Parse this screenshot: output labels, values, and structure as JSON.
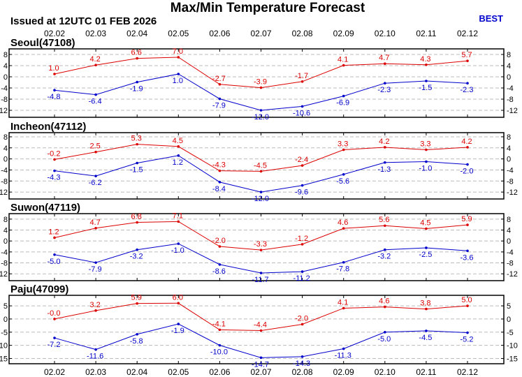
{
  "title": "Max/Min Temperature Forecast",
  "issued": "Issued at 12UTC 01 FEB 2026",
  "badge": "BEST",
  "colors": {
    "max": "#dd0000",
    "min": "#0000cc",
    "grid": "#bbbbbb"
  },
  "chart_data": [
    {
      "type": "line",
      "station": "Seoul(47108)",
      "categories": [
        "02.02",
        "02.03",
        "02.04",
        "02.05",
        "02.06",
        "02.07",
        "02.08",
        "02.09",
        "02.10",
        "02.11",
        "02.12"
      ],
      "yticks": [
        8,
        4,
        0,
        -4,
        -8,
        -12
      ],
      "ylim": [
        -14.5,
        10
      ],
      "grid": true,
      "series": [
        {
          "key": "max",
          "values": [
            1.0,
            4.2,
            6.6,
            7.0,
            -2.7,
            -3.9,
            -1.7,
            4.1,
            4.7,
            4.3,
            5.7
          ],
          "labels": [
            "1.0",
            "4.2",
            "6.6",
            "7.0",
            "-2.7",
            "-3.9",
            "-1.7",
            "4.1",
            "4.7",
            "4.3",
            "5.7"
          ]
        },
        {
          "key": "min",
          "values": [
            -4.8,
            -6.4,
            -1.9,
            1.0,
            -7.9,
            -12.0,
            -10.6,
            -6.9,
            -2.3,
            -1.5,
            -2.3
          ],
          "labels": [
            "-4.8",
            "-6.4",
            "-1.9",
            "1.0",
            "-7.9",
            "-12.0",
            "-10.6",
            "-6.9",
            "-2.3",
            "-1.5",
            "-2.3"
          ]
        }
      ]
    },
    {
      "type": "line",
      "station": "Incheon(47112)",
      "categories": [
        "02.02",
        "02.03",
        "02.04",
        "02.05",
        "02.06",
        "02.07",
        "02.08",
        "02.09",
        "02.10",
        "02.11",
        "02.12"
      ],
      "yticks": [
        8,
        4,
        0,
        -4,
        -8,
        -12
      ],
      "ylim": [
        -14.5,
        9.5
      ],
      "grid": true,
      "series": [
        {
          "key": "max",
          "values": [
            -0.2,
            2.5,
            5.3,
            4.5,
            -4.3,
            -4.5,
            -2.4,
            3.3,
            4.2,
            3.3,
            4.2
          ],
          "labels": [
            "-0.2",
            "2.5",
            "5.3",
            "4.5",
            "-4.3",
            "-4.5",
            "-2.4",
            "3.3",
            "4.2",
            "3.3",
            "4.2"
          ]
        },
        {
          "key": "min",
          "values": [
            -4.3,
            -6.2,
            -1.5,
            1.2,
            -8.4,
            -12.0,
            -9.6,
            -5.6,
            -1.3,
            -1.0,
            -2.0
          ],
          "labels": [
            "-4.3",
            "-6.2",
            "-1.5",
            "1.2",
            "-8.4",
            "-12.0",
            "-9.6",
            "-5.6",
            "-1.3",
            "-1.0",
            "-2.0"
          ]
        }
      ]
    },
    {
      "type": "line",
      "station": "Suwon(47119)",
      "categories": [
        "02.02",
        "02.03",
        "02.04",
        "02.05",
        "02.06",
        "02.07",
        "02.08",
        "02.09",
        "02.10",
        "02.11",
        "02.12"
      ],
      "yticks": [
        8,
        4,
        0,
        -4,
        -8,
        -12
      ],
      "ylim": [
        -14.5,
        10
      ],
      "grid": true,
      "series": [
        {
          "key": "max",
          "values": [
            1.2,
            4.7,
            6.8,
            7.1,
            -2.0,
            -3.3,
            -1.2,
            4.6,
            5.6,
            4.5,
            5.9
          ],
          "labels": [
            "1.2",
            "4.7",
            "6.8",
            "7.1",
            "-2.0",
            "-3.3",
            "-1.2",
            "4.6",
            "5.6",
            "4.5",
            "5.9"
          ]
        },
        {
          "key": "min",
          "values": [
            -5.0,
            -7.9,
            -3.2,
            -1.0,
            -8.6,
            -11.7,
            -11.2,
            -7.8,
            -3.2,
            -2.5,
            -3.6
          ],
          "labels": [
            "-5.0",
            "-7.9",
            "-3.2",
            "-1.0",
            "-8.6",
            "-11.7",
            "-11.2",
            "-7.8",
            "-3.2",
            "-2.5",
            "-3.6"
          ]
        }
      ]
    },
    {
      "type": "line",
      "station": "Paju(47099)",
      "categories": [
        "02.02",
        "02.03",
        "02.04",
        "02.05",
        "02.06",
        "02.07",
        "02.08",
        "02.09",
        "02.10",
        "02.11",
        "02.12"
      ],
      "yticks": [
        5,
        0,
        -5,
        -10,
        -15
      ],
      "ylim": [
        -17,
        9
      ],
      "grid": true,
      "series": [
        {
          "key": "max",
          "values": [
            -0.0,
            3.2,
            5.9,
            6.0,
            -4.1,
            -4.4,
            -2.0,
            4.1,
            4.6,
            3.8,
            5.0
          ],
          "labels": [
            "-0.0",
            "3.2",
            "5.9",
            "6.0",
            "-4.1",
            "-4.4",
            "-2.0",
            "4.1",
            "4.6",
            "3.8",
            "5.0"
          ]
        },
        {
          "key": "min",
          "values": [
            -7.2,
            -11.6,
            -5.8,
            -1.9,
            -10.0,
            -14.7,
            -14.3,
            -11.3,
            -5.0,
            -4.5,
            -5.2
          ],
          "labels": [
            "-7.2",
            "-11.6",
            "-5.8",
            "-1.9",
            "-10.0",
            "-14.7",
            "-14.3",
            "-11.3",
            "-5.0",
            "-4.5",
            "-5.2"
          ]
        }
      ]
    }
  ]
}
